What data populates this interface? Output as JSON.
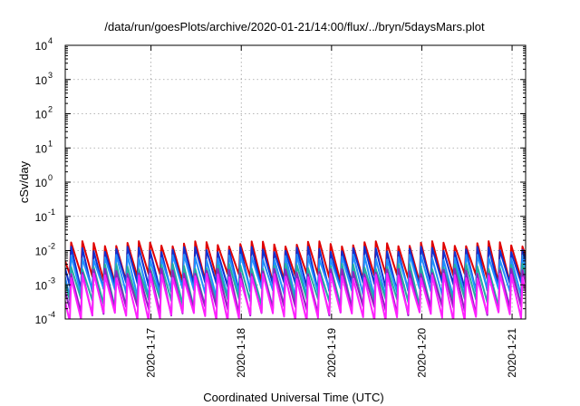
{
  "chart_data": {
    "type": "line",
    "title": "/data/run/goesPlots/archive/2020-01-21/14:00/flux/../bryn/5daysMars.plot",
    "xlabel": "Coordinated Universal Time (UTC)",
    "ylabel": "cSv/day",
    "yscale": "log",
    "ylim": [
      0.0001,
      10000
    ],
    "xlim": [
      0,
      5.1
    ],
    "grid": true,
    "y_ticks": [
      {
        "value": -4,
        "base": "10",
        "exp": "-4"
      },
      {
        "value": -3,
        "base": "10",
        "exp": "-3"
      },
      {
        "value": -2,
        "base": "10",
        "exp": "-2"
      },
      {
        "value": -1,
        "base": "10",
        "exp": "-1"
      },
      {
        "value": 0,
        "base": "10",
        "exp": "0"
      },
      {
        "value": 1,
        "base": "10",
        "exp": "1"
      },
      {
        "value": 2,
        "base": "10",
        "exp": "2"
      },
      {
        "value": 3,
        "base": "10",
        "exp": "3"
      },
      {
        "value": 4,
        "base": "10",
        "exp": "4"
      }
    ],
    "x_ticks": [
      {
        "value": 0.95,
        "label": "2020-1-17"
      },
      {
        "value": 1.95,
        "label": "2020-1-18"
      },
      {
        "value": 2.95,
        "label": "2020-1-19"
      },
      {
        "value": 3.95,
        "label": "2020-1-20"
      },
      {
        "value": 4.95,
        "label": "2020-1-21"
      }
    ],
    "cycle_days": 0.125,
    "cycle_start": 0.05,
    "rise_fraction": 0.12,
    "series": [
      {
        "color": "#e00000",
        "peak": 0.016,
        "trough": 0.0016
      },
      {
        "color": "#1030d0",
        "peak": 0.011,
        "trough": 0.0009
      },
      {
        "color": "#2090ff",
        "peak": 0.0065,
        "trough": 0.0006
      },
      {
        "color": "#20b0a0",
        "peak": 0.0035,
        "trough": 0.0003
      },
      {
        "color": "#9020c0",
        "peak": 0.0025,
        "trough": 0.00018
      },
      {
        "color": "#ff20ff",
        "peak": 0.0018,
        "trough": 0.00012
      }
    ]
  }
}
